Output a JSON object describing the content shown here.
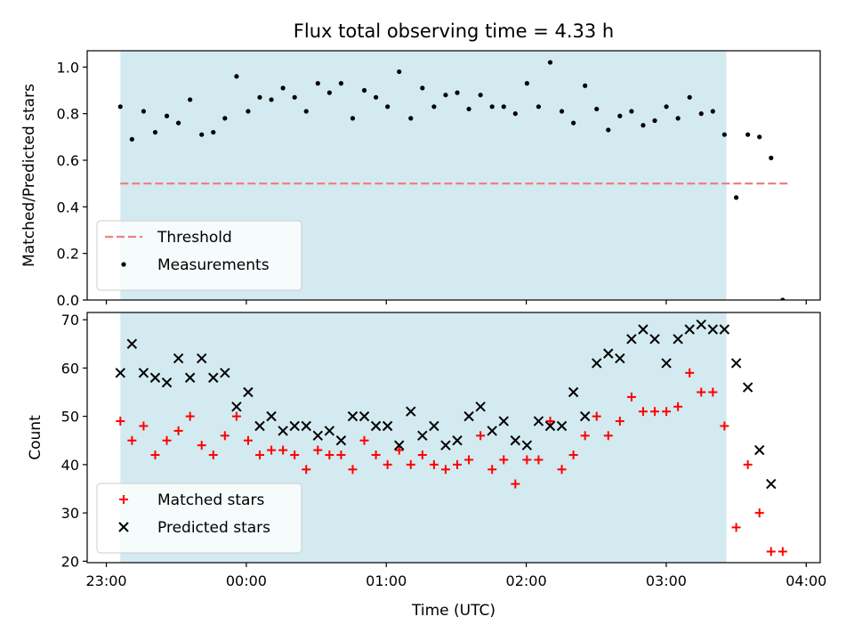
{
  "chart_data": {
    "type": "scatter",
    "title": "Flux total observing time = 4.33 h",
    "xlabel": "Time (UTC)",
    "x_ticks": [
      "23:00",
      "00:00",
      "01:00",
      "02:00",
      "03:00",
      "04:00"
    ],
    "x_tick_hours": [
      0,
      1,
      2,
      3,
      4,
      5
    ],
    "xlim_hours": [
      -0.137,
      5.1
    ],
    "x_origin_label": "23:00",
    "shaded_span_hours": [
      0.1,
      4.43
    ],
    "shade_color": "#d3eaf0",
    "panels": [
      {
        "id": "ratio",
        "ylabel": "Matched/Predicted stars",
        "ylim": [
          0.0,
          1.07
        ],
        "yticks": [
          0.0,
          0.2,
          0.4,
          0.6,
          0.8,
          1.0
        ],
        "y_tick_labels": [
          "0.0",
          "0.2",
          "0.4",
          "0.6",
          "0.8",
          "1.0"
        ],
        "legend": {
          "placement": "lower-left"
        },
        "threshold": {
          "name": "Threshold",
          "value": 0.5,
          "x_range_hours": [
            0.1,
            4.88
          ],
          "color": "#f08080"
        },
        "series": [
          {
            "name": "Measurements",
            "marker": "dot",
            "color": "#000000",
            "x_hours": [
              0.1,
              0.183,
              0.266,
              0.349,
              0.432,
              0.515,
              0.598,
              0.681,
              0.764,
              0.847,
              0.93,
              1.013,
              1.096,
              1.179,
              1.262,
              1.345,
              1.428,
              1.511,
              1.594,
              1.677,
              1.76,
              1.843,
              1.926,
              2.009,
              2.092,
              2.175,
              2.258,
              2.341,
              2.424,
              2.507,
              2.59,
              2.673,
              2.756,
              2.839,
              2.922,
              3.005,
              3.088,
              3.171,
              3.254,
              3.337,
              3.42,
              3.503,
              3.586,
              3.669,
              3.752,
              3.835,
              3.918,
              4.001,
              4.084,
              4.167,
              4.25,
              4.333,
              4.416,
              4.5,
              4.583,
              4.666,
              4.749,
              4.832
            ],
            "y": [
              0.83,
              0.69,
              0.81,
              0.72,
              0.79,
              0.76,
              0.86,
              0.71,
              0.72,
              0.78,
              0.96,
              0.81,
              0.87,
              0.86,
              0.91,
              0.87,
              0.81,
              0.93,
              0.89,
              0.93,
              0.78,
              0.9,
              0.87,
              0.83,
              0.98,
              0.78,
              0.91,
              0.83,
              0.88,
              0.89,
              0.82,
              0.88,
              0.83,
              0.83,
              0.8,
              0.93,
              0.83,
              1.02,
              0.81,
              0.76,
              0.92,
              0.82,
              0.73,
              0.79,
              0.81,
              0.75,
              0.77,
              0.83,
              0.78,
              0.87,
              0.8,
              0.81,
              0.71,
              0.44,
              0.71,
              0.7,
              0.61,
              0.0
            ]
          }
        ]
      },
      {
        "id": "count",
        "ylabel": "Count",
        "ylim": [
          19.7,
          71.5
        ],
        "yticks": [
          20,
          30,
          40,
          50,
          60,
          70
        ],
        "y_tick_labels": [
          "20",
          "30",
          "40",
          "50",
          "60",
          "70"
        ],
        "legend": {
          "placement": "lower-left"
        },
        "series": [
          {
            "name": "Matched stars",
            "marker": "plus",
            "color": "#ff0000",
            "x_hours": [
              0.1,
              0.183,
              0.266,
              0.349,
              0.432,
              0.515,
              0.598,
              0.681,
              0.764,
              0.847,
              0.93,
              1.013,
              1.096,
              1.179,
              1.262,
              1.345,
              1.428,
              1.511,
              1.594,
              1.677,
              1.76,
              1.843,
              1.926,
              2.009,
              2.092,
              2.175,
              2.258,
              2.341,
              2.424,
              2.507,
              2.59,
              2.673,
              2.756,
              2.839,
              2.922,
              3.005,
              3.088,
              3.171,
              3.254,
              3.337,
              3.42,
              3.503,
              3.586,
              3.669,
              3.752,
              3.835,
              3.918,
              4.001,
              4.084,
              4.167,
              4.25,
              4.333,
              4.416,
              4.5,
              4.583,
              4.666,
              4.749,
              4.832
            ],
            "y": [
              49,
              45,
              48,
              42,
              45,
              47,
              50,
              44,
              42,
              46,
              50,
              45,
              42,
              43,
              43,
              42,
              39,
              43,
              42,
              42,
              39,
              45,
              42,
              40,
              43,
              40,
              42,
              40,
              39,
              40,
              41,
              46,
              39,
              41,
              36,
              41,
              41,
              49,
              39,
              42,
              46,
              50,
              46,
              49,
              54,
              51,
              51,
              51,
              52,
              59,
              55,
              55,
              48,
              27,
              40,
              30,
              22,
              22
            ]
          },
          {
            "name": "Predicted stars",
            "marker": "x",
            "color": "#000000",
            "x_hours": [
              0.1,
              0.183,
              0.266,
              0.349,
              0.432,
              0.515,
              0.598,
              0.681,
              0.764,
              0.847,
              0.93,
              1.013,
              1.096,
              1.179,
              1.262,
              1.345,
              1.428,
              1.511,
              1.594,
              1.677,
              1.76,
              1.843,
              1.926,
              2.009,
              2.092,
              2.175,
              2.258,
              2.341,
              2.424,
              2.507,
              2.59,
              2.673,
              2.756,
              2.839,
              2.922,
              3.005,
              3.088,
              3.171,
              3.254,
              3.337,
              3.42,
              3.503,
              3.586,
              3.669,
              3.752,
              3.835,
              3.918,
              4.001,
              4.084,
              4.167,
              4.25,
              4.333,
              4.416,
              4.5,
              4.583,
              4.666,
              4.749
            ],
            "y": [
              59,
              65,
              59,
              58,
              57,
              62,
              58,
              62,
              58,
              59,
              52,
              55,
              48,
              50,
              47,
              48,
              48,
              46,
              47,
              45,
              50,
              50,
              48,
              48,
              44,
              51,
              46,
              48,
              44,
              45,
              50,
              52,
              47,
              49,
              45,
              44,
              49,
              48,
              48,
              55,
              50,
              61,
              63,
              62,
              66,
              68,
              66,
              61,
              66,
              68,
              69,
              68,
              68,
              61,
              56,
              43,
              36
            ]
          }
        ]
      }
    ]
  }
}
